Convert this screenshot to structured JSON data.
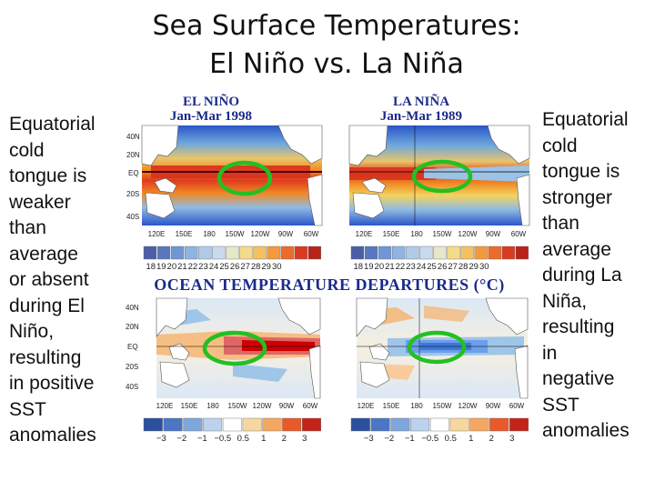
{
  "title_line1": "Sea Surface Temperatures:",
  "title_line2": "El Niño vs. La Niña",
  "left_caption": [
    "Equatorial",
    "cold",
    "tongue is",
    "weaker",
    "than",
    "average",
    "or absent",
    "during El",
    "Niño,",
    "resulting",
    "in positive",
    "SST",
    "anomalies"
  ],
  "right_caption": [
    "Equatorial",
    "cold",
    "tongue is",
    "stronger",
    "than",
    "average",
    "during La",
    "Niña,",
    "resulting",
    "in",
    "negative",
    "SST",
    "anomalies"
  ],
  "figure": {
    "el_nino_title": "EL NIÑO",
    "el_nino_period": "Jan-Mar 1998",
    "la_nina_title": "LA NIÑA",
    "la_nina_period": "Jan-Mar 1989",
    "departures_header": "OCEAN TEMPERATURE DEPARTURES (°C)",
    "lat_labels": [
      "40N",
      "20N",
      "EQ",
      "20S",
      "40S"
    ],
    "lon_labels": [
      "120E",
      "150E",
      "180",
      "150W",
      "120W",
      "90W",
      "60W"
    ],
    "temp_scale": [
      "18",
      "19",
      "20",
      "21",
      "22",
      "23",
      "24",
      "25",
      "26",
      "27",
      "28",
      "29",
      "30"
    ],
    "anomaly_scale": [
      "−3",
      "−2",
      "−1",
      "−0.5",
      "0.5",
      "1",
      "2",
      "3"
    ],
    "highlight_color": "#22c022"
  }
}
